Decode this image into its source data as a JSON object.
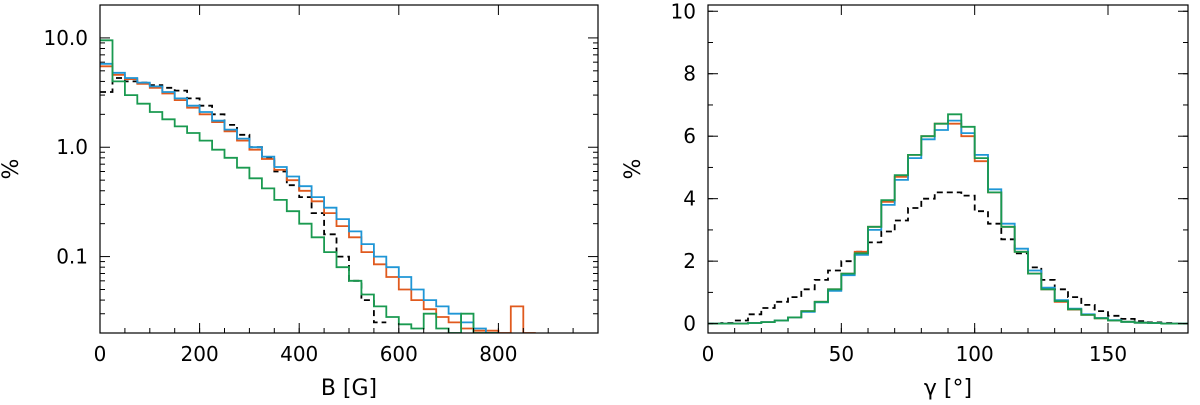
{
  "chart_data": [
    {
      "type": "line",
      "step": true,
      "xlabel": "B [G]",
      "ylabel": "%",
      "xlim": [
        0,
        1000
      ],
      "ylim": [
        0.02,
        20
      ],
      "yscale": "log",
      "xticks": [
        0,
        200,
        400,
        600,
        800
      ],
      "xtick_labels": [
        "0",
        "200",
        "400",
        "600",
        "800"
      ],
      "yticks": [
        0.1,
        1.0,
        10.0
      ],
      "ytick_labels": [
        "0.1",
        "1.0",
        "10.0"
      ],
      "series": [
        {
          "color": "#000000",
          "dash": true,
          "x": [
            0,
            25,
            50,
            75,
            100,
            125,
            150,
            175,
            200,
            225,
            250,
            275,
            300,
            325,
            350,
            375,
            400,
            425,
            450,
            475,
            500,
            525,
            550
          ],
          "y": [
            3.2,
            4.3,
            4.0,
            3.9,
            3.7,
            3.5,
            3.3,
            2.8,
            2.4,
            2.0,
            1.6,
            1.3,
            1.0,
            0.8,
            0.6,
            0.45,
            0.35,
            0.25,
            0.16,
            0.1,
            0.06,
            0.04,
            0.025
          ]
        },
        {
          "color": "#e05a1e",
          "x": [
            0,
            25,
            50,
            75,
            100,
            125,
            150,
            175,
            200,
            225,
            250,
            275,
            300,
            325,
            350,
            375,
            400,
            425,
            450,
            475,
            500,
            525,
            550,
            575,
            600,
            625,
            650,
            675,
            700,
            725,
            750,
            775,
            800,
            825,
            850
          ],
          "y": [
            5.5,
            4.6,
            4.2,
            3.8,
            3.5,
            3.1,
            2.7,
            2.3,
            2.0,
            1.7,
            1.4,
            1.15,
            0.95,
            0.78,
            0.62,
            0.5,
            0.4,
            0.32,
            0.25,
            0.19,
            0.15,
            0.11,
            0.085,
            0.065,
            0.05,
            0.04,
            0.033,
            0.028,
            0.025,
            0.022,
            0.021,
            0.021,
            0.02,
            0.035,
            0.02
          ]
        },
        {
          "color": "#1f96d6",
          "x": [
            0,
            25,
            50,
            75,
            100,
            125,
            150,
            175,
            200,
            225,
            250,
            275,
            300,
            325,
            350,
            375,
            400,
            425,
            450,
            475,
            500,
            525,
            550,
            575,
            600,
            625,
            650,
            675,
            700,
            725,
            750,
            775
          ],
          "y": [
            5.8,
            4.8,
            4.3,
            3.9,
            3.6,
            3.2,
            2.8,
            2.4,
            2.1,
            1.75,
            1.45,
            1.2,
            1.0,
            0.82,
            0.66,
            0.54,
            0.44,
            0.35,
            0.28,
            0.22,
            0.17,
            0.13,
            0.1,
            0.08,
            0.065,
            0.05,
            0.04,
            0.035,
            0.03,
            0.025,
            0.022,
            0.02
          ]
        },
        {
          "color": "#1a9a50",
          "x": [
            0,
            25,
            50,
            75,
            100,
            125,
            150,
            175,
            200,
            225,
            250,
            275,
            300,
            325,
            350,
            375,
            400,
            425,
            450,
            475,
            500,
            525,
            550,
            575,
            600,
            625,
            650,
            675,
            700,
            725,
            750,
            775
          ],
          "y": [
            9.5,
            4.0,
            3.0,
            2.5,
            2.1,
            1.8,
            1.55,
            1.35,
            1.15,
            0.95,
            0.8,
            0.65,
            0.52,
            0.42,
            0.33,
            0.26,
            0.2,
            0.15,
            0.11,
            0.08,
            0.06,
            0.045,
            0.035,
            0.028,
            0.024,
            0.022,
            0.03,
            0.022,
            0.02,
            0.03,
            0.02,
            0.02
          ]
        }
      ]
    },
    {
      "type": "line",
      "step": true,
      "xlabel": "γ [°]",
      "ylabel": "%",
      "xlim": [
        0,
        180
      ],
      "ylim": [
        -0.3,
        10.2
      ],
      "xticks": [
        0,
        50,
        100,
        150
      ],
      "xtick_labels": [
        "0",
        "50",
        "100",
        "150"
      ],
      "yticks": [
        0,
        2,
        4,
        6,
        8,
        10
      ],
      "ytick_labels": [
        "0",
        "2",
        "4",
        "6",
        "8",
        "10"
      ],
      "series": [
        {
          "color": "#000000",
          "dash": true,
          "x": [
            0,
            5,
            10,
            15,
            20,
            25,
            30,
            35,
            40,
            45,
            50,
            55,
            60,
            65,
            70,
            75,
            80,
            85,
            90,
            95,
            100,
            105,
            110,
            115,
            120,
            125,
            130,
            135,
            140,
            145,
            150,
            155,
            160,
            165,
            170,
            175,
            180
          ],
          "y": [
            0,
            0.02,
            0.1,
            0.3,
            0.5,
            0.7,
            0.85,
            1.1,
            1.4,
            1.7,
            2.0,
            2.3,
            2.6,
            2.95,
            3.3,
            3.7,
            4.0,
            4.2,
            4.2,
            4.1,
            3.6,
            3.2,
            2.7,
            2.25,
            1.8,
            1.4,
            1.1,
            0.85,
            0.6,
            0.4,
            0.25,
            0.15,
            0.08,
            0.04,
            0.02,
            0,
            0
          ]
        },
        {
          "color": "#e05a1e",
          "x": [
            0,
            5,
            10,
            15,
            20,
            25,
            30,
            35,
            40,
            45,
            50,
            55,
            60,
            65,
            70,
            75,
            80,
            85,
            90,
            95,
            100,
            105,
            110,
            115,
            120,
            125,
            130,
            135,
            140,
            145,
            150,
            155,
            160,
            165,
            170,
            175,
            180
          ],
          "y": [
            0,
            0,
            0,
            0.02,
            0.05,
            0.1,
            0.2,
            0.4,
            0.7,
            1.1,
            1.6,
            2.3,
            3.1,
            3.9,
            4.7,
            5.4,
            6.0,
            6.4,
            6.4,
            6.0,
            5.2,
            4.2,
            3.1,
            2.3,
            1.6,
            1.1,
            0.7,
            0.45,
            0.28,
            0.17,
            0.1,
            0.06,
            0.03,
            0.02,
            0,
            0,
            0
          ]
        },
        {
          "color": "#1f96d6",
          "x": [
            0,
            5,
            10,
            15,
            20,
            25,
            30,
            35,
            40,
            45,
            50,
            55,
            60,
            65,
            70,
            75,
            80,
            85,
            90,
            95,
            100,
            105,
            110,
            115,
            120,
            125,
            130,
            135,
            140,
            145,
            150,
            155,
            160,
            165,
            170,
            175,
            180
          ],
          "y": [
            0,
            0,
            0,
            0.02,
            0.05,
            0.1,
            0.2,
            0.38,
            0.68,
            1.05,
            1.55,
            2.2,
            3.0,
            3.8,
            4.6,
            5.3,
            5.9,
            6.2,
            6.5,
            6.1,
            5.4,
            4.3,
            3.2,
            2.4,
            1.7,
            1.15,
            0.75,
            0.48,
            0.3,
            0.18,
            0.11,
            0.06,
            0.03,
            0.02,
            0,
            0,
            0
          ]
        },
        {
          "color": "#1a9a50",
          "x": [
            0,
            5,
            10,
            15,
            20,
            25,
            30,
            35,
            40,
            45,
            50,
            55,
            60,
            65,
            70,
            75,
            80,
            85,
            90,
            95,
            100,
            105,
            110,
            115,
            120,
            125,
            130,
            135,
            140,
            145,
            150,
            155,
            160,
            165,
            170,
            175,
            180
          ],
          "y": [
            0,
            0,
            0,
            0.02,
            0.05,
            0.1,
            0.2,
            0.4,
            0.7,
            1.1,
            1.6,
            2.25,
            3.1,
            3.95,
            4.75,
            5.4,
            6.0,
            6.4,
            6.7,
            6.3,
            5.3,
            4.2,
            3.1,
            2.3,
            1.6,
            1.1,
            0.72,
            0.46,
            0.28,
            0.17,
            0.1,
            0.06,
            0.03,
            0.02,
            0,
            0,
            0
          ]
        }
      ]
    }
  ]
}
